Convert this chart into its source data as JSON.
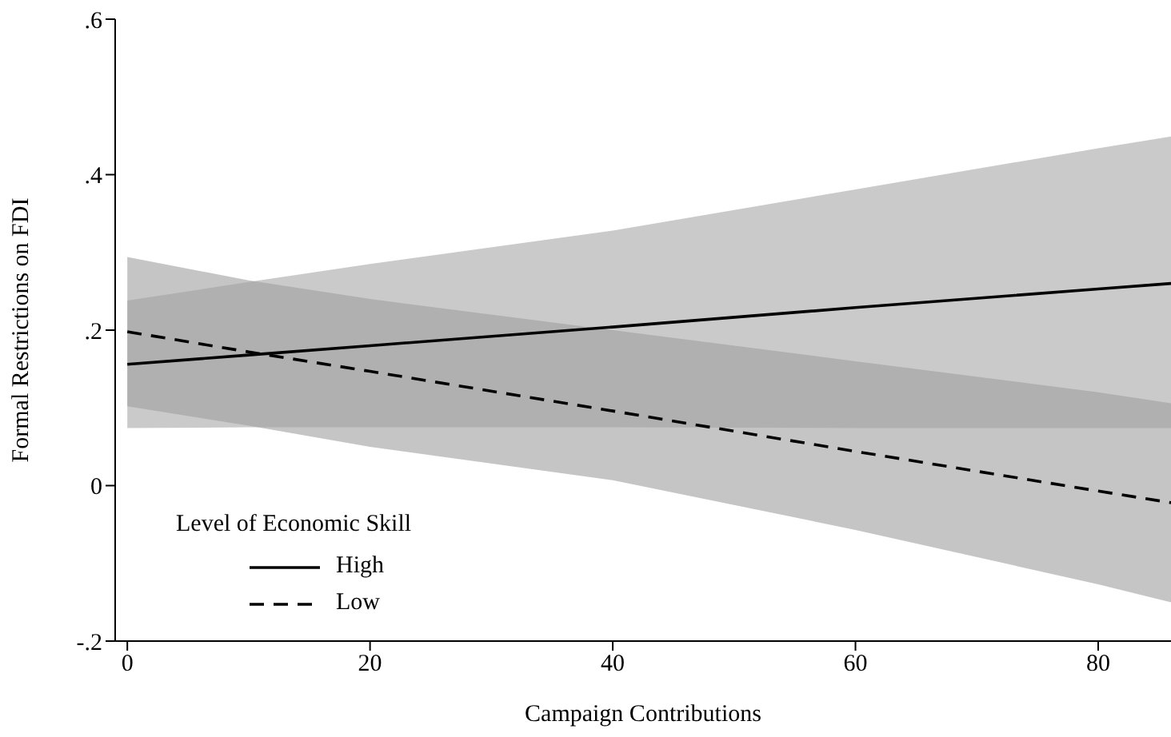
{
  "chart_data": {
    "type": "line",
    "xlabel": "Campaign Contributions",
    "ylabel": "Formal Restrictions on FDI",
    "legend_title": "Level of Economic Skill",
    "x": [
      0,
      10,
      20,
      40,
      60,
      80,
      86
    ],
    "series": [
      {
        "name": "High",
        "color": "#000000",
        "line_style": "solid",
        "values": [
          0.156,
          0.168,
          0.18,
          0.204,
          0.229,
          0.253,
          0.26
        ],
        "lower": [
          0.074,
          0.075,
          0.075,
          0.075,
          0.074,
          0.074,
          0.074
        ],
        "upper": [
          0.238,
          0.262,
          0.285,
          0.328,
          0.381,
          0.434,
          0.449
        ]
      },
      {
        "name": "Low",
        "color": "#000000",
        "line_style": "dashed",
        "values": [
          0.198,
          0.172,
          0.147,
          0.096,
          0.044,
          -0.007,
          -0.022
        ],
        "lower": [
          0.102,
          0.077,
          0.05,
          0.007,
          -0.057,
          -0.127,
          -0.15
        ],
        "upper": [
          0.294,
          0.264,
          0.24,
          0.2,
          0.16,
          0.12,
          0.106
        ]
      }
    ],
    "xlim": [
      -1,
      86
    ],
    "xticks": [
      0,
      20,
      40,
      60,
      80
    ],
    "ylim": [
      -0.2,
      0.6
    ],
    "yticks": [
      {
        "value": -0.2,
        "label": "-.2"
      },
      0,
      {
        "value": 0.2,
        "label": ".2"
      },
      {
        "value": 0.4,
        "label": ".4"
      },
      {
        "value": 0.6,
        "label": ".6"
      }
    ],
    "grid": false,
    "legend": "bottom left",
    "marker": "none"
  }
}
